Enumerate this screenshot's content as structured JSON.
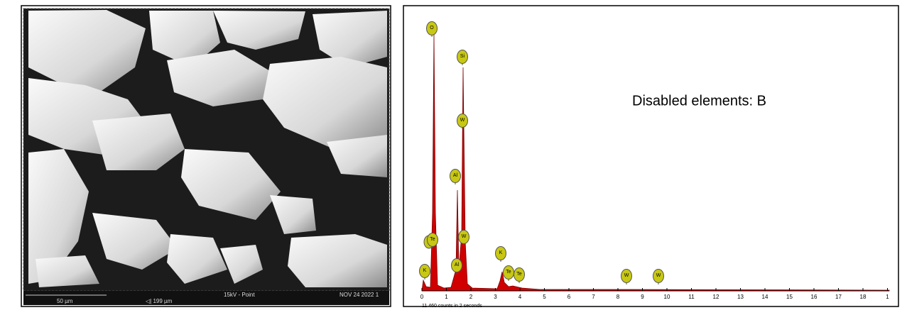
{
  "sem": {
    "scale_bar": "50 µm",
    "field_of_view": "◁| 199 µm",
    "beam": "15kV - Point",
    "date": "NOV 24 2022 1"
  },
  "spectrum": {
    "note": "Disabled elements: B",
    "counts": "11 460 counts in 2 seconds",
    "x_ticks": [
      "0",
      "1",
      "2",
      "3",
      "4",
      "5",
      "6",
      "7",
      "8",
      "9",
      "10",
      "11",
      "12",
      "13",
      "14",
      "15",
      "16",
      "17",
      "18",
      "1"
    ],
    "peaks": [
      "O",
      "Si",
      "W",
      "Al",
      "W",
      "Te",
      "K",
      "Al",
      "K",
      "Te",
      "Te",
      "W",
      "W"
    ]
  }
}
